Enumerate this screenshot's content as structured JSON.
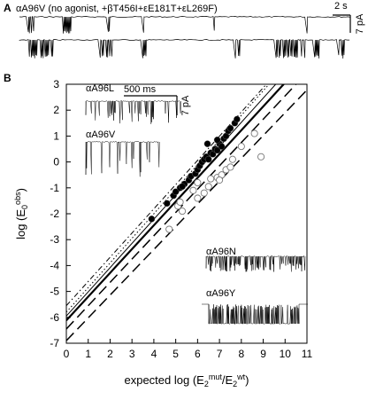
{
  "panel_a": {
    "label": "A",
    "title": "αA96V (no agonist, +βT456I+εE181T+εL269F)",
    "scale_time": "2 s",
    "scale_current": "7 pA"
  },
  "panel_b": {
    "label": "B",
    "insets": [
      {
        "label": "αA96L",
        "scale_time": "500 ms",
        "scale_current": "7 pA"
      },
      {
        "label": "αA96V"
      },
      {
        "label": "αA96N"
      },
      {
        "label": "αA96Y"
      }
    ]
  },
  "colors": {
    "filled": "#000000",
    "open": "#ffffff",
    "lines": "#000000"
  },
  "chart_data": {
    "type": "scatter",
    "title": "",
    "xlabel": "expected log  (E2mut/E2wt)",
    "ylabel": "log (E0obs)",
    "xlim": [
      0,
      11
    ],
    "ylim": [
      -7,
      3
    ],
    "x_ticks": [
      0,
      1,
      2,
      3,
      4,
      5,
      6,
      7,
      8,
      9,
      10,
      11
    ],
    "y_ticks": [
      -7,
      -6,
      -5,
      -4,
      -3,
      -2,
      -1,
      0,
      1,
      2,
      3
    ],
    "grid": false,
    "series": [
      {
        "marker": "filled-circle",
        "points": [
          [
            3.9,
            -2.2
          ],
          [
            4.6,
            -1.6
          ],
          [
            4.9,
            -1.3
          ],
          [
            5.0,
            -1.15
          ],
          [
            5.2,
            -1.0
          ],
          [
            5.4,
            -0.85
          ],
          [
            5.6,
            -0.7
          ],
          [
            5.7,
            -0.55
          ],
          [
            5.9,
            -0.45
          ],
          [
            6.0,
            -0.3
          ],
          [
            6.1,
            -0.15
          ],
          [
            6.2,
            0.0
          ],
          [
            6.3,
            0.1
          ],
          [
            6.4,
            0.2
          ],
          [
            6.5,
            0.1
          ],
          [
            6.6,
            0.35
          ],
          [
            6.7,
            0.3
          ],
          [
            6.8,
            0.5
          ],
          [
            6.9,
            0.45
          ],
          [
            7.0,
            0.7
          ],
          [
            7.1,
            0.6
          ],
          [
            7.2,
            0.9
          ],
          [
            7.3,
            1.0
          ],
          [
            7.4,
            1.2
          ],
          [
            7.5,
            1.3
          ],
          [
            7.7,
            1.5
          ],
          [
            7.8,
            1.65
          ],
          [
            6.45,
            0.7
          ],
          [
            6.9,
            0.85
          ],
          [
            5.3,
            -0.95
          ]
        ]
      },
      {
        "marker": "open-circle",
        "points": [
          [
            4.7,
            -2.6
          ],
          [
            5.3,
            -1.9
          ],
          [
            5.1,
            -1.7
          ],
          [
            6.0,
            -1.4
          ],
          [
            6.3,
            -1.2
          ],
          [
            5.8,
            -1.1
          ],
          [
            6.5,
            -0.95
          ],
          [
            6.0,
            -0.8
          ],
          [
            6.9,
            -0.6
          ],
          [
            7.1,
            -0.5
          ],
          [
            7.3,
            -0.3
          ],
          [
            7.5,
            -0.2
          ],
          [
            7.6,
            0.1
          ],
          [
            8.0,
            0.6
          ],
          [
            8.6,
            1.1
          ],
          [
            8.9,
            0.2
          ],
          [
            7.0,
            -0.7
          ],
          [
            6.6,
            -0.65
          ],
          [
            5.2,
            -1.55
          ]
        ]
      }
    ],
    "fit_lines": [
      {
        "style": "solid-thick",
        "intercept": -6.12,
        "slope": 0.918
      },
      {
        "style": "solid-thin",
        "intercept": -5.95,
        "slope": 0.935
      },
      {
        "style": "dotted",
        "intercept": -5.8,
        "slope": 0.95
      },
      {
        "style": "dash-dot",
        "intercept": -5.55,
        "slope": 0.935
      },
      {
        "style": "long-dash",
        "intercept": -6.45,
        "slope": 0.9
      },
      {
        "style": "long-dash",
        "intercept": -6.9,
        "slope": 0.88
      }
    ]
  }
}
